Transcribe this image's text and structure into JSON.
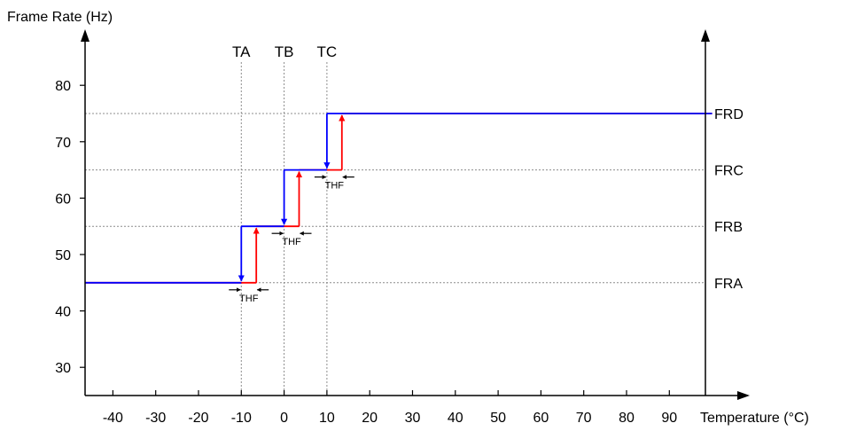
{
  "chart_data": {
    "type": "line",
    "ylabel": "Frame Rate (Hz)",
    "xlabel": "Temperature (°C)",
    "x_ticks": [
      -40,
      -30,
      -20,
      -10,
      0,
      10,
      20,
      30,
      40,
      50,
      60,
      70,
      80,
      90
    ],
    "y_ticks": [
      30,
      40,
      50,
      60,
      70,
      80
    ],
    "xlim": [
      -46.5,
      100
    ],
    "ylim": [
      25,
      90
    ],
    "grid": false,
    "levels": [
      {
        "label": "FRA",
        "value": 45
      },
      {
        "label": "FRB",
        "value": 55
      },
      {
        "label": "FRC",
        "value": 65
      },
      {
        "label": "FRD",
        "value": 75
      }
    ],
    "markers": [
      {
        "label": "TA",
        "x": -10
      },
      {
        "label": "TB",
        "x": 0
      },
      {
        "label": "TC",
        "x": 10
      }
    ],
    "hysteresis_label": "THF",
    "series": [
      {
        "color": "#0000ff",
        "x": [
          -46.5,
          -10,
          -10,
          0,
          0,
          10,
          10,
          100
        ],
        "y": [
          45,
          45,
          55,
          55,
          65,
          65,
          75,
          75
        ]
      },
      {
        "color": "#ff0000",
        "x": [
          -46.5,
          -6.5,
          -6.5,
          3.5,
          3.5,
          13.5,
          13.5,
          100
        ],
        "y": [
          45,
          45,
          55,
          55,
          65,
          65,
          75,
          75
        ]
      }
    ]
  }
}
